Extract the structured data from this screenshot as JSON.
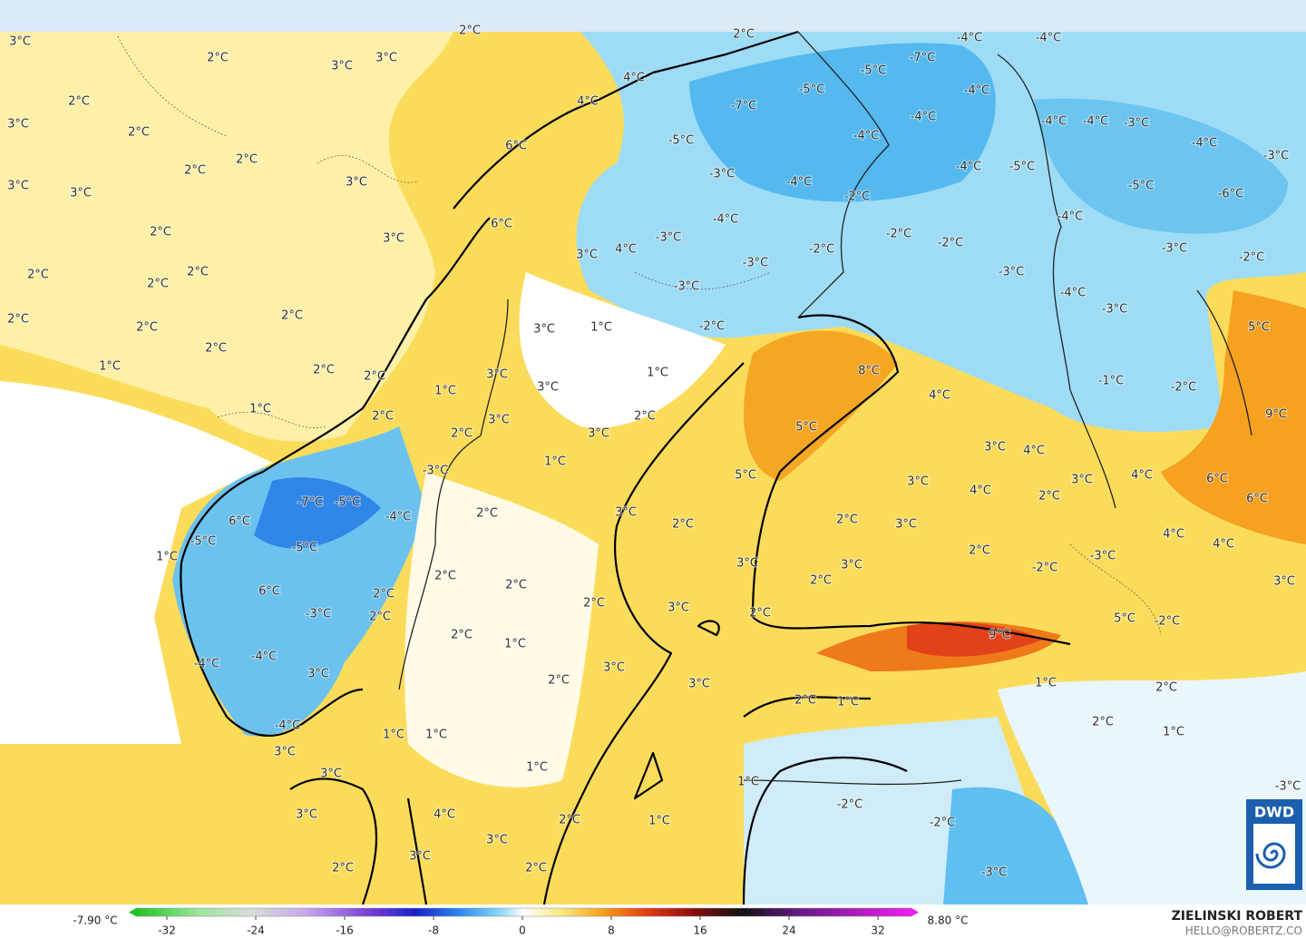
{
  "map": {
    "labels": [
      "3°C",
      "2°C",
      "2°C",
      "2°C",
      "3°C",
      "3°C",
      "2°C",
      "3°C",
      "2°C",
      "2°C",
      "2°C",
      "3°C",
      "3°C",
      "3°C",
      "2°C",
      "3°C",
      "2°C",
      "2°C",
      "2°C",
      "2°C",
      "2°C",
      "2°C",
      "2°C",
      "1°C",
      "2°C",
      "1°C",
      "2°C",
      "6°C",
      "6°C",
      "4°C",
      "4°C",
      "-5°C",
      "-7°C",
      "-5°C",
      "-5°C",
      "-7°C",
      "-4°C",
      "-4°C",
      "-4°C",
      "-4°C",
      "-4°C",
      "-3°C",
      "-4°C",
      "-2°C",
      "-4°C",
      "-3°C",
      "4°C",
      "3°C",
      "-3°C",
      "-3°C",
      "-2°C",
      "-2°C",
      "-2°C",
      "-2°C",
      "-4°C",
      "-5°C",
      "-4°C",
      "-4°C",
      "-3°C",
      "-4°C",
      "-3°C",
      "-5°C",
      "-6°C",
      "-4°C",
      "-3°C",
      "-4°C",
      "-3°C",
      "-3°C",
      "-2°C",
      "5°C",
      "9°C",
      "-1°C",
      "-2°C",
      "8°C",
      "4°C",
      "5°C",
      "5°C",
      "3°C",
      "4°C",
      "3°C",
      "4°C",
      "6°C",
      "6°C",
      "4°C",
      "4°C",
      "3°C",
      "3°C",
      "4°C",
      "2°C",
      "2°C",
      "3°C",
      "2°C",
      "-3°C",
      "-2°C",
      "3°C",
      "2°C",
      "5°C",
      "-2°C",
      "9°C",
      "1°C",
      "2°C",
      "2°C",
      "1°C",
      "-3°C",
      "2°C",
      "1°C",
      "2°C",
      "3°C",
      "3°C",
      "3°C",
      "2°C",
      "3°C",
      "1°C",
      "1°C",
      "-2°C",
      "-2°C",
      "-3°C",
      "1°C",
      "1°C",
      "3°C",
      "3°C",
      "3°C",
      "1°C",
      "3°C",
      "2°C",
      "3°C",
      "2°C",
      "1°C",
      "2°C",
      "-3°C",
      "-7°C",
      "-5°C",
      "6°C",
      "-4°C",
      "2°C",
      "-5°C",
      "-5°C",
      "1°C",
      "6°C",
      "2°C",
      "2°C",
      "2°C",
      "2°C",
      "-3°C",
      "2°C",
      "2°C",
      "1°C",
      "-4°C",
      "-4°C",
      "3°C",
      "2°C",
      "3°C",
      "1°C",
      "1°C",
      "-4°C",
      "3°C",
      "3°C",
      "1°C",
      "3°C",
      "4°C",
      "3°C",
      "2°C",
      "3°C",
      "2°C",
      "2°C"
    ]
  },
  "colorbar": {
    "min_label": "-7.90 °C",
    "max_label": "8.80 °C",
    "ticks": [
      -32,
      -24,
      -16,
      -8,
      0,
      8,
      16,
      24,
      32
    ]
  },
  "credit": {
    "name": "ZIELINSKI ROBERT",
    "email": "HELLO@ROBERTZ.CO"
  },
  "logo": "DWD"
}
